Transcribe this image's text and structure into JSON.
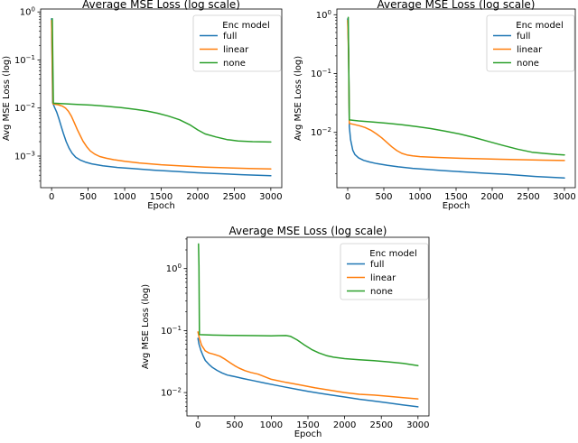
{
  "style_colors": {
    "background": "#ffffff",
    "axis": "#000000",
    "legend_border": "#cccccc",
    "full_series": "#1f77b4",
    "linear_series": "#ff7f0e",
    "none_series": "#2ca02c"
  },
  "chart_data": [
    {
      "type": "line",
      "yscale": "log",
      "title": "Average MSE Loss (log scale)",
      "xlabel": "Epoch",
      "ylabel": "Avg MSE Loss (log)",
      "legend": {
        "title": "Enc model",
        "position": "upper right"
      },
      "grid": false,
      "xlim": [
        -150,
        3150
      ],
      "ylim": [
        0.00022,
        1.15
      ],
      "x_ticks": [
        0,
        500,
        1000,
        1500,
        2000,
        2500,
        3000
      ],
      "y_tick_exponents": [
        0,
        -1,
        -2,
        -3
      ],
      "series": [
        {
          "name": "full",
          "color": "#1f77b4",
          "points": [
            [
              0,
              0.72
            ],
            [
              14,
              0.013
            ],
            [
              40,
              0.0103
            ],
            [
              70,
              0.0082
            ],
            [
              100,
              0.006
            ],
            [
              130,
              0.0042
            ],
            [
              160,
              0.003
            ],
            [
              200,
              0.002
            ],
            [
              240,
              0.00145
            ],
            [
              280,
              0.00115
            ],
            [
              330,
              0.00095
            ],
            [
              390,
              0.00083
            ],
            [
              460,
              0.00075
            ],
            [
              550,
              0.00069
            ],
            [
              700,
              0.00063
            ],
            [
              900,
              0.00058
            ],
            [
              1100,
              0.00055
            ],
            [
              1400,
              0.00051
            ],
            [
              1700,
              0.00048
            ],
            [
              2000,
              0.00045
            ],
            [
              2300,
              0.00043
            ],
            [
              2600,
              0.00041
            ],
            [
              3000,
              0.00039
            ]
          ]
        },
        {
          "name": "linear",
          "color": "#ff7f0e",
          "points": [
            [
              0,
              0.66
            ],
            [
              18,
              0.0122
            ],
            [
              90,
              0.0117
            ],
            [
              150,
              0.0109
            ],
            [
              190,
              0.01
            ],
            [
              230,
              0.0086
            ],
            [
              270,
              0.0068
            ],
            [
              310,
              0.005
            ],
            [
              350,
              0.0036
            ],
            [
              390,
              0.0027
            ],
            [
              430,
              0.00205
            ],
            [
              480,
              0.00157
            ],
            [
              530,
              0.00128
            ],
            [
              590,
              0.0011
            ],
            [
              660,
              0.00098
            ],
            [
              750,
              0.0009
            ],
            [
              850,
              0.00084
            ],
            [
              1000,
              0.00078
            ],
            [
              1200,
              0.00072
            ],
            [
              1500,
              0.00066
            ],
            [
              1800,
              0.00062
            ],
            [
              2100,
              0.00059
            ],
            [
              2400,
              0.00057
            ],
            [
              2700,
              0.00055
            ],
            [
              3000,
              0.00054
            ]
          ]
        },
        {
          "name": "none",
          "color": "#2ca02c",
          "points": [
            [
              10,
              0.72
            ],
            [
              24,
              0.0126
            ],
            [
              150,
              0.0123
            ],
            [
              350,
              0.0119
            ],
            [
              550,
              0.0115
            ],
            [
              750,
              0.0109
            ],
            [
              950,
              0.0102
            ],
            [
              1150,
              0.0094
            ],
            [
              1300,
              0.0087
            ],
            [
              1450,
              0.0078
            ],
            [
              1600,
              0.0068
            ],
            [
              1750,
              0.0057
            ],
            [
              1900,
              0.0044
            ],
            [
              2000,
              0.0035
            ],
            [
              2100,
              0.0029
            ],
            [
              2250,
              0.0025
            ],
            [
              2400,
              0.0022
            ],
            [
              2550,
              0.00207
            ],
            [
              2750,
              0.002
            ],
            [
              3000,
              0.00196
            ]
          ]
        }
      ]
    },
    {
      "type": "line",
      "yscale": "log",
      "title": "Average MSE Loss (log scale)",
      "xlabel": "Epoch",
      "ylabel": "Avg MSE Loss (log)",
      "legend": {
        "title": "Enc model",
        "position": "upper right"
      },
      "grid": false,
      "xlim": [
        -150,
        3150
      ],
      "ylim": [
        0.00115,
        1.25
      ],
      "x_ticks": [
        0,
        500,
        1000,
        1500,
        2000,
        2500,
        3000
      ],
      "y_tick_exponents": [
        0,
        -1,
        -2
      ],
      "series": [
        {
          "name": "full",
          "color": "#1f77b4",
          "points": [
            [
              0,
              0.85
            ],
            [
              12,
              0.25
            ],
            [
              22,
              0.0125
            ],
            [
              40,
              0.0075
            ],
            [
              70,
              0.005
            ],
            [
              100,
              0.0042
            ],
            [
              150,
              0.0037
            ],
            [
              220,
              0.00335
            ],
            [
              300,
              0.00315
            ],
            [
              400,
              0.00295
            ],
            [
              550,
              0.00275
            ],
            [
              700,
              0.0026
            ],
            [
              900,
              0.00245
            ],
            [
              1100,
              0.00235
            ],
            [
              1300,
              0.00225
            ],
            [
              1600,
              0.00213
            ],
            [
              1900,
              0.00202
            ],
            [
              2200,
              0.00193
            ],
            [
              2600,
              0.00178
            ],
            [
              3000,
              0.00168
            ]
          ]
        },
        {
          "name": "linear",
          "color": "#ff7f0e",
          "points": [
            [
              0,
              0.8
            ],
            [
              12,
              0.2
            ],
            [
              22,
              0.0142
            ],
            [
              80,
              0.0137
            ],
            [
              160,
              0.013
            ],
            [
              240,
              0.0121
            ],
            [
              320,
              0.0109
            ],
            [
              400,
              0.0094
            ],
            [
              470,
              0.0081
            ],
            [
              540,
              0.0068
            ],
            [
              610,
              0.0057
            ],
            [
              680,
              0.0049
            ],
            [
              750,
              0.0044
            ],
            [
              820,
              0.00415
            ],
            [
              900,
              0.00398
            ],
            [
              1000,
              0.00388
            ],
            [
              1200,
              0.00376
            ],
            [
              1500,
              0.00365
            ],
            [
              1800,
              0.00357
            ],
            [
              2100,
              0.0035
            ],
            [
              2400,
              0.00344
            ],
            [
              2700,
              0.00338
            ],
            [
              3000,
              0.00333
            ]
          ]
        },
        {
          "name": "none",
          "color": "#2ca02c",
          "points": [
            [
              8,
              0.9
            ],
            [
              22,
              0.0163
            ],
            [
              150,
              0.0157
            ],
            [
              350,
              0.015
            ],
            [
              550,
              0.0143
            ],
            [
              750,
              0.0135
            ],
            [
              950,
              0.0126
            ],
            [
              1150,
              0.0116
            ],
            [
              1350,
              0.0105
            ],
            [
              1550,
              0.0094
            ],
            [
              1750,
              0.0082
            ],
            [
              1950,
              0.007
            ],
            [
              2150,
              0.006
            ],
            [
              2350,
              0.0052
            ],
            [
              2550,
              0.0046
            ],
            [
              2750,
              0.00435
            ],
            [
              2900,
              0.0042
            ],
            [
              3000,
              0.00415
            ]
          ]
        }
      ]
    },
    {
      "type": "line",
      "yscale": "log",
      "title": "Average MSE Loss (log scale)",
      "xlabel": "Epoch",
      "ylabel": "Avg MSE Loss (log)",
      "legend": {
        "title": "Enc model",
        "position": "upper right"
      },
      "grid": false,
      "xlim": [
        -150,
        3150
      ],
      "ylim": [
        0.0042,
        3.2
      ],
      "x_ticks": [
        0,
        500,
        1000,
        1500,
        2000,
        2500,
        3000
      ],
      "y_tick_exponents": [
        0,
        -1,
        -2
      ],
      "series": [
        {
          "name": "full",
          "color": "#1f77b4",
          "points": [
            [
              0,
              0.075
            ],
            [
              15,
              0.06
            ],
            [
              40,
              0.048
            ],
            [
              70,
              0.039
            ],
            [
              100,
              0.033
            ],
            [
              150,
              0.0285
            ],
            [
              200,
              0.0253
            ],
            [
              260,
              0.0228
            ],
            [
              330,
              0.0207
            ],
            [
              400,
              0.0192
            ],
            [
              500,
              0.0181
            ],
            [
              620,
              0.0168
            ],
            [
              750,
              0.0156
            ],
            [
              900,
              0.0143
            ],
            [
              1050,
              0.0132
            ],
            [
              1200,
              0.0122
            ],
            [
              1350,
              0.0113
            ],
            [
              1500,
              0.0105
            ],
            [
              1650,
              0.0098
            ],
            [
              1800,
              0.0092
            ],
            [
              2000,
              0.0085
            ],
            [
              2200,
              0.0078
            ],
            [
              2400,
              0.0073
            ],
            [
              2600,
              0.0068
            ],
            [
              2800,
              0.0063
            ],
            [
              3000,
              0.0059
            ]
          ]
        },
        {
          "name": "linear",
          "color": "#ff7f0e",
          "points": [
            [
              0,
              0.095
            ],
            [
              20,
              0.075
            ],
            [
              50,
              0.058
            ],
            [
              100,
              0.047
            ],
            [
              150,
              0.0435
            ],
            [
              220,
              0.0415
            ],
            [
              300,
              0.0386
            ],
            [
              370,
              0.0345
            ],
            [
              440,
              0.0302
            ],
            [
              500,
              0.0272
            ],
            [
              560,
              0.0248
            ],
            [
              640,
              0.0226
            ],
            [
              720,
              0.0211
            ],
            [
              820,
              0.0198
            ],
            [
              1000,
              0.0164
            ],
            [
              1200,
              0.0146
            ],
            [
              1400,
              0.0132
            ],
            [
              1600,
              0.0119
            ],
            [
              1800,
              0.0109
            ],
            [
              2000,
              0.01
            ],
            [
              2200,
              0.0094
            ],
            [
              2400,
              0.0091
            ],
            [
              2600,
              0.0087
            ],
            [
              2800,
              0.0083
            ],
            [
              3000,
              0.0079
            ]
          ]
        },
        {
          "name": "none",
          "color": "#2ca02c",
          "points": [
            [
              8,
              2.5
            ],
            [
              14,
              1.1
            ],
            [
              20,
              0.086
            ],
            [
              200,
              0.0845
            ],
            [
              500,
              0.0835
            ],
            [
              800,
              0.0828
            ],
            [
              1000,
              0.0825
            ],
            [
              1100,
              0.0828
            ],
            [
              1200,
              0.0832
            ],
            [
              1260,
              0.081
            ],
            [
              1350,
              0.071
            ],
            [
              1450,
              0.059
            ],
            [
              1550,
              0.0495
            ],
            [
              1650,
              0.0435
            ],
            [
              1750,
              0.0395
            ],
            [
              1850,
              0.0372
            ],
            [
              2000,
              0.0353
            ],
            [
              2200,
              0.0338
            ],
            [
              2400,
              0.0327
            ],
            [
              2600,
              0.0313
            ],
            [
              2800,
              0.0295
            ],
            [
              3000,
              0.0272
            ]
          ]
        }
      ]
    }
  ]
}
